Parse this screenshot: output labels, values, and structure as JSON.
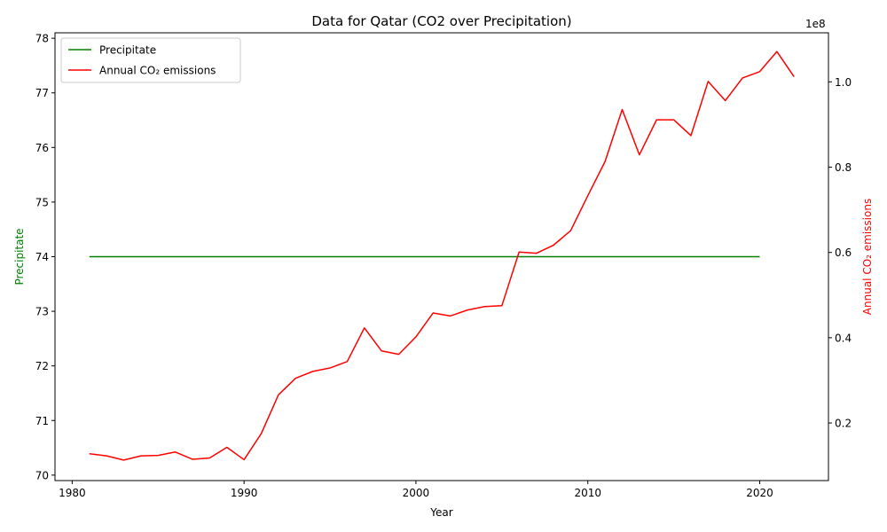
{
  "chart_data": {
    "type": "line",
    "title": "Data for Qatar (CO2 over Precipitation)",
    "xlabel": "Year",
    "ylabel_left": "Precipitate",
    "ylabel_right": "Annual CO₂ emissions",
    "right_axis_multiplier": "1e8",
    "xlim": [
      1979,
      2024
    ],
    "ylim_left": [
      69.9,
      78.1
    ],
    "ylim_right": [
      0.065,
      1.115
    ],
    "xticks": [
      1980,
      1990,
      2000,
      2010,
      2020
    ],
    "yticks_left": [
      70,
      71,
      72,
      73,
      74,
      75,
      76,
      77,
      78
    ],
    "yticks_right": [
      0.2,
      0.4,
      0.6,
      0.8,
      1.0
    ],
    "legend_position": "upper-left",
    "colors": {
      "precip": "#008000",
      "co2": "#ff0000",
      "left_label": "#008000",
      "right_label": "#ff0000"
    },
    "series": [
      {
        "name": "Precipitate",
        "axis": "left",
        "color": "#008000",
        "x": [
          1981,
          2020
        ],
        "values": [
          74,
          74
        ]
      },
      {
        "name": "Annual CO₂ emissions",
        "axis": "right",
        "color": "#ff0000",
        "x": [
          1981,
          1982,
          1983,
          1984,
          1985,
          1986,
          1987,
          1988,
          1989,
          1990,
          1991,
          1992,
          1993,
          1994,
          1995,
          1996,
          1997,
          1998,
          1999,
          2000,
          2001,
          2002,
          2003,
          2004,
          2005,
          2006,
          2007,
          2008,
          2009,
          2010,
          2011,
          2012,
          2013,
          2014,
          2015,
          2016,
          2017,
          2018,
          2019,
          2020,
          2021,
          2022
        ],
        "values": [
          0.128,
          0.123,
          0.113,
          0.123,
          0.124,
          0.132,
          0.115,
          0.118,
          0.143,
          0.114,
          0.175,
          0.266,
          0.305,
          0.321,
          0.329,
          0.344,
          0.423,
          0.369,
          0.361,
          0.402,
          0.458,
          0.451,
          0.465,
          0.473,
          0.475,
          0.601,
          0.598,
          0.617,
          0.651,
          0.733,
          0.813,
          0.935,
          0.829,
          0.911,
          0.911,
          0.874,
          1.001,
          0.956,
          1.009,
          1.024,
          1.071,
          1.012
        ]
      }
    ]
  }
}
